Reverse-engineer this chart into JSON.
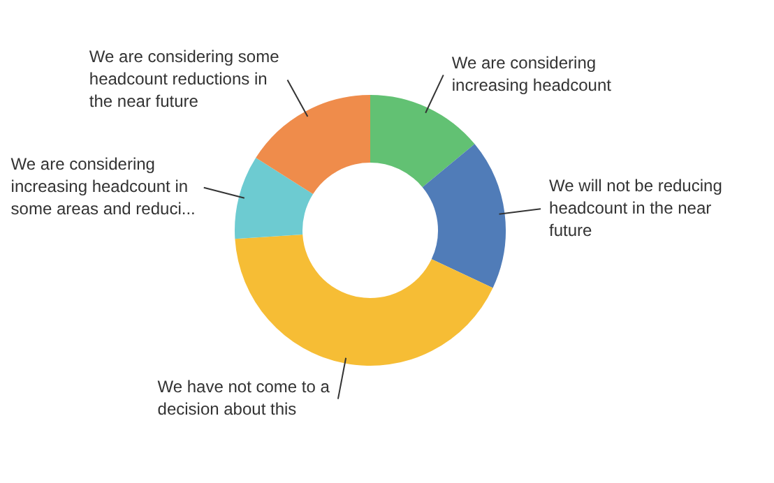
{
  "chart_data": {
    "type": "donut",
    "categories": [
      "We are considering increasing headcount",
      "We will not be reducing headcount in the near future",
      "We have not come to a decision about this",
      "We are considering increasing headcount in some areas and reduci...",
      "We are considering some headcount reductions in the near future"
    ],
    "values": [
      14,
      18,
      42,
      10,
      16
    ],
    "colors": [
      "#62c173",
      "#507cb8",
      "#f6bd35",
      "#6dcbd1",
      "#ef8c4b"
    ],
    "legend": false
  }
}
